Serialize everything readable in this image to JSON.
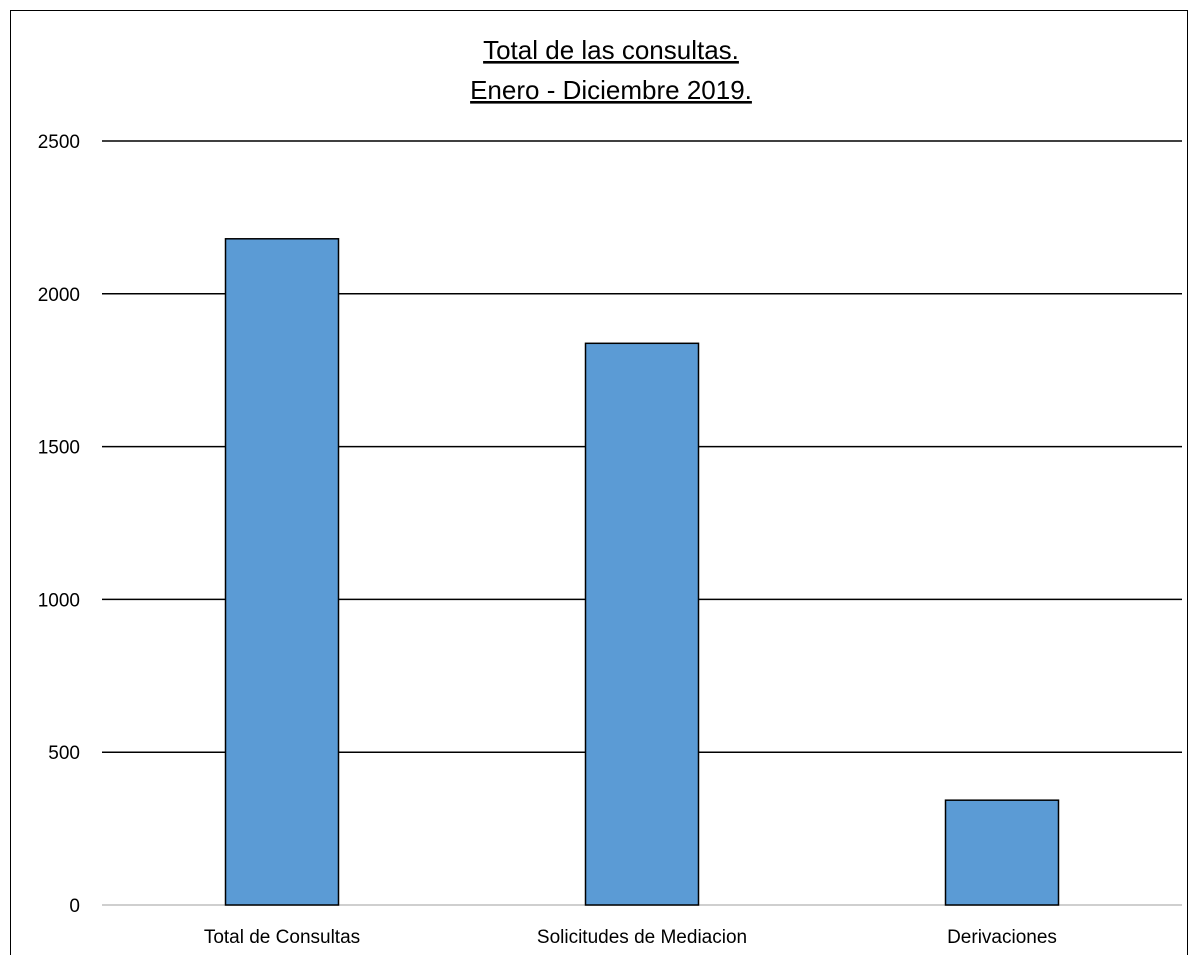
{
  "chart_data": {
    "type": "bar",
    "title_lines": [
      "Total de las consultas.",
      "Enero - Diciembre 2019."
    ],
    "categories": [
      "Total de Consultas",
      "Solicitudes de Mediacion",
      "Derivaciones"
    ],
    "values": [
      2180,
      1838,
      343
    ],
    "xlabel": "",
    "ylabel": "",
    "ylim": [
      0,
      2500
    ],
    "yticks": [
      0,
      500,
      1000,
      1500,
      2000,
      2500
    ],
    "grid": true,
    "legend": "none",
    "colors": {
      "bar_fill": "#5B9BD5",
      "bar_stroke": "#000000",
      "grid": "#000000",
      "axis": "#BFBFBF"
    }
  }
}
